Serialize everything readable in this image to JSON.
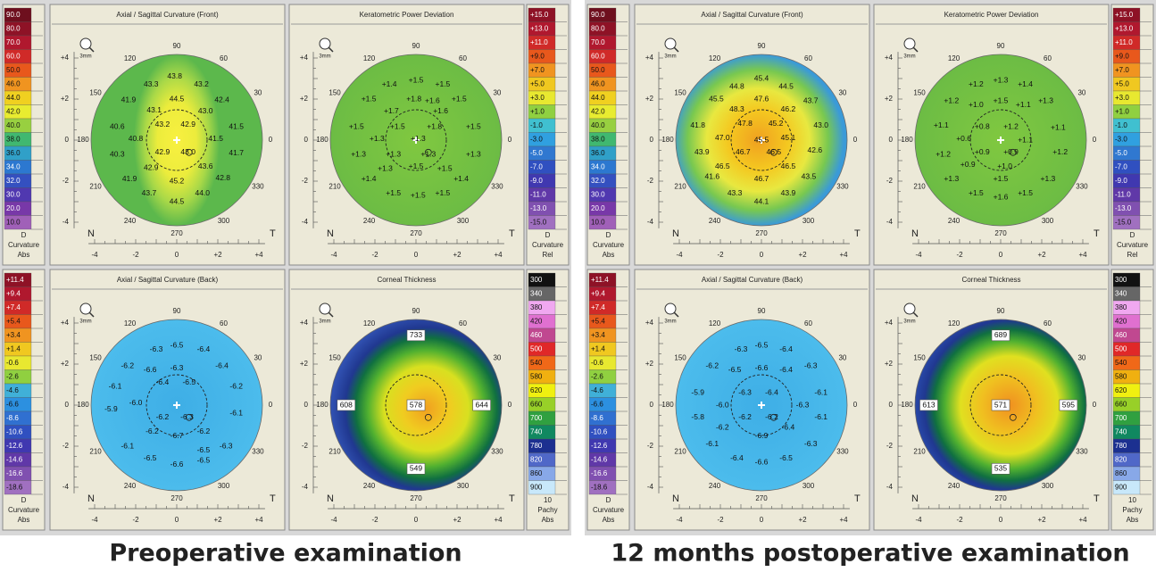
{
  "map_labels": {
    "compass": [
      "90",
      "60",
      "30",
      "0",
      "330",
      "300",
      "270",
      "240",
      "210",
      "180",
      "150",
      "120"
    ],
    "yticks": [
      "+4",
      "+2",
      "0",
      "-2",
      "-4"
    ],
    "xticks": [
      "-4",
      "-2",
      "0",
      "+2",
      "+4"
    ],
    "nasal": "N",
    "temporal": "T",
    "zoom": "3mm"
  },
  "panels": [
    {
      "caption": "Preoperative examination",
      "scales": [
        {
          "labels": [
            "90.0",
            "80.0",
            "70.0",
            "60.0",
            "50.0",
            "46.0",
            "44.0",
            "42.0",
            "40.0",
            "38.0",
            "36.0",
            "34.0",
            "32.0",
            "30.0",
            "20.0",
            "10.0"
          ],
          "colors": [
            "#6e0f1e",
            "#8e1226",
            "#b0182e",
            "#d02a28",
            "#e8581c",
            "#f09420",
            "#f0d020",
            "#e8ec30",
            "#98d040",
            "#40b870",
            "#30a0c8",
            "#2c78d0",
            "#3450c0",
            "#5038b0",
            "#7838a8",
            "#a060b8"
          ],
          "footer": [
            "D",
            "Curvature",
            "Abs"
          ]
        },
        {
          "labels": [
            "+15.0",
            "+13.0",
            "+11.0",
            "+9.0",
            "+7.0",
            "+5.0",
            "+3.0",
            "+1.0",
            "-1.0",
            "-3.0",
            "-5.0",
            "-7.0",
            "-9.0",
            "-11.0",
            "-13.0",
            "-15.0"
          ],
          "colors": [
            "#8e1226",
            "#b0182e",
            "#d02a28",
            "#e8581c",
            "#f09420",
            "#f0c820",
            "#e8e830",
            "#90d040",
            "#40c0d0",
            "#30a0e0",
            "#3078d0",
            "#3050c0",
            "#4038b0",
            "#6038a8",
            "#8050b0",
            "#a070c0"
          ],
          "footer": [
            "D",
            "Curvature",
            "Rel"
          ]
        },
        {
          "labels": [
            "+11.4",
            "+9.4",
            "+7.4",
            "+5.4",
            "+3.4",
            "+1.4",
            "-0.6",
            "-2.6",
            "-4.6",
            "-6.6",
            "-8.6",
            "-10.6",
            "-12.6",
            "-14.6",
            "-16.6",
            "-18.6"
          ],
          "colors": [
            "#8e1226",
            "#b0182e",
            "#d02a28",
            "#e8581c",
            "#f09420",
            "#f0c820",
            "#e8e830",
            "#90d040",
            "#40b0d8",
            "#2c90e0",
            "#3070d0",
            "#3050c0",
            "#4038b0",
            "#6038a8",
            "#8050b0",
            "#a070c0"
          ],
          "footer": [
            "D",
            "Curvature",
            "Abs"
          ]
        },
        {
          "labels": [
            "300",
            "340",
            "380",
            "420",
            "460",
            "500",
            "540",
            "580",
            "620",
            "660",
            "700",
            "740",
            "780",
            "820",
            "860",
            "900"
          ],
          "colors": [
            "#111111",
            "#666666",
            "#f0a8f0",
            "#e070d0",
            "#c04890",
            "#e02828",
            "#f06818",
            "#f0b010",
            "#f0f010",
            "#98d028",
            "#30a040",
            "#108860",
            "#1c3090",
            "#5068c8",
            "#88a8e8",
            "#c8e8fa"
          ],
          "footer": [
            "10",
            "Pachy",
            "Abs"
          ]
        }
      ],
      "maps": [
        {
          "title": "Axial / Sagittal Curvature (Front)",
          "values": [
            "43.8",
            "43.3",
            "43.2",
            "44.5",
            "41.9",
            "42.4",
            "43.1",
            "43.0",
            "43.2",
            "42.9",
            "40.6",
            "41.5",
            "40.8",
            "41.5",
            "40.3",
            "41.7",
            "42.9",
            "43.0",
            "42.9",
            "43.6",
            "41.9",
            "45.2",
            "42.8",
            "43.7",
            "44.0",
            "44.5"
          ]
        },
        {
          "title": "Keratometric Power Deviation",
          "values": [
            "+1.4",
            "+1.5",
            "+1.5",
            "+1.5",
            "+1.8",
            "+1.6",
            "+1.5",
            "+1.7",
            "+1.6",
            "+1.5",
            "+1.5",
            "+1.8",
            "+1.5",
            "+1.3",
            "+1.3",
            "+1.3",
            "+1.3",
            "+1.3",
            "+1.3",
            "+1.3",
            "+1.5",
            "+1.5",
            "+1.4",
            "+1.4",
            "+1.5",
            "+1.5",
            "+1.5"
          ]
        },
        {
          "title": "Axial / Sagittal Curvature (Back)",
          "values": [
            "-6.3",
            "-6.5",
            "-6.4",
            "-6.2",
            "-6.6",
            "-6.3",
            "-6.4",
            "-6.4",
            "-6.5",
            "-6.1",
            "-6.0",
            "-6.2",
            "-6.2",
            "-6.3",
            "-6.1",
            "-5.9",
            "-6.2",
            "-6.2",
            "-6.7",
            "-6.1",
            "-6.5",
            "-6.3",
            "-6.5",
            "-6.6",
            "-6.5"
          ]
        },
        {
          "title": "Corneal Thickness",
          "values": [
            "733",
            "608",
            "578",
            "644",
            "549"
          ]
        }
      ]
    },
    {
      "caption": "12 months postoperative examination",
      "scales": [
        {
          "labels": [
            "90.0",
            "80.0",
            "70.0",
            "60.0",
            "50.0",
            "46.0",
            "44.0",
            "42.0",
            "40.0",
            "38.0",
            "36.0",
            "34.0",
            "32.0",
            "30.0",
            "20.0",
            "10.0"
          ],
          "colors": [
            "#6e0f1e",
            "#8e1226",
            "#b0182e",
            "#d02a28",
            "#e8581c",
            "#f09420",
            "#f0d020",
            "#e8ec30",
            "#98d040",
            "#40b870",
            "#30a0c8",
            "#2c78d0",
            "#3450c0",
            "#5038b0",
            "#7838a8",
            "#a060b8"
          ],
          "footer": [
            "D",
            "Curvature",
            "Abs"
          ]
        },
        {
          "labels": [
            "+15.0",
            "+13.0",
            "+11.0",
            "+9.0",
            "+7.0",
            "+5.0",
            "+3.0",
            "+1.0",
            "-1.0",
            "-3.0",
            "-5.0",
            "-7.0",
            "-9.0",
            "-11.0",
            "-13.0",
            "-15.0"
          ],
          "colors": [
            "#8e1226",
            "#b0182e",
            "#d02a28",
            "#e8581c",
            "#f09420",
            "#f0c820",
            "#e8e830",
            "#90d040",
            "#40c0d0",
            "#30a0e0",
            "#3078d0",
            "#3050c0",
            "#4038b0",
            "#6038a8",
            "#8050b0",
            "#a070c0"
          ],
          "footer": [
            "D",
            "Curvature",
            "Rel"
          ]
        },
        {
          "labels": [
            "+11.4",
            "+9.4",
            "+7.4",
            "+5.4",
            "+3.4",
            "+1.4",
            "-0.6",
            "-2.6",
            "-4.6",
            "-6.6",
            "-8.6",
            "-10.6",
            "-12.6",
            "-14.6",
            "-16.6",
            "-18.6"
          ],
          "colors": [
            "#8e1226",
            "#b0182e",
            "#d02a28",
            "#e8581c",
            "#f09420",
            "#f0c820",
            "#e8e830",
            "#90d040",
            "#40b0d8",
            "#2c90e0",
            "#3070d0",
            "#3050c0",
            "#4038b0",
            "#6038a8",
            "#8050b0",
            "#a070c0"
          ],
          "footer": [
            "D",
            "Curvature",
            "Abs"
          ]
        },
        {
          "labels": [
            "300",
            "340",
            "380",
            "420",
            "460",
            "500",
            "540",
            "580",
            "620",
            "660",
            "700",
            "740",
            "780",
            "820",
            "860",
            "900"
          ],
          "colors": [
            "#111111",
            "#666666",
            "#f0a8f0",
            "#e070d0",
            "#c04890",
            "#e02828",
            "#f06818",
            "#f0b010",
            "#f0f010",
            "#98d028",
            "#30a040",
            "#108860",
            "#1c3090",
            "#5068c8",
            "#88a8e8",
            "#c8e8fa"
          ],
          "footer": [
            "10",
            "Pachy",
            "Abs"
          ]
        }
      ],
      "maps": [
        {
          "title": "Axial / Sagittal Curvature (Front)",
          "values": [
            "45.4",
            "44.8",
            "44.5",
            "47.6",
            "45.5",
            "48.3",
            "46.2",
            "43.7",
            "47.8",
            "45.2",
            "41.8",
            "43.0",
            "47.0",
            "45.5",
            "45.1",
            "43.9",
            "46.7",
            "46.5",
            "42.6",
            "46.5",
            "46.5",
            "41.6",
            "46.7",
            "43.5",
            "43.3",
            "43.9",
            "44.1"
          ]
        },
        {
          "title": "Keratometric Power Deviation",
          "values": [
            "+1.2",
            "+1.3",
            "+1.4",
            "+1.2",
            "+1.0",
            "+1.5",
            "+1.1",
            "+1.3",
            "+1.1",
            "+0.8",
            "+1.2",
            "+1.1",
            "+0.6",
            "+1.1",
            "+1.2",
            "+0.9",
            "+0.9",
            "+1.2",
            "+0.9",
            "+1.0",
            "+1.3",
            "+1.5",
            "+1.3",
            "+1.5",
            "+1.6",
            "+1.5"
          ]
        },
        {
          "title": "Axial / Sagittal Curvature (Back)",
          "values": [
            "-6.3",
            "-6.5",
            "-6.4",
            "-6.2",
            "-6.5",
            "-6.6",
            "-6.4",
            "-6.3",
            "-5.9",
            "-6.3",
            "-6.4",
            "-6.1",
            "-6.0",
            "-6.3",
            "-5.8",
            "-6.2",
            "-6.2",
            "-6.1",
            "-6.2",
            "-6.4",
            "-6.1",
            "-6.9",
            "-6.3",
            "-6.4",
            "-6.6",
            "-6.5"
          ]
        },
        {
          "title": "Corneal Thickness",
          "values": [
            "689",
            "613",
            "571",
            "595",
            "535"
          ]
        }
      ]
    }
  ]
}
